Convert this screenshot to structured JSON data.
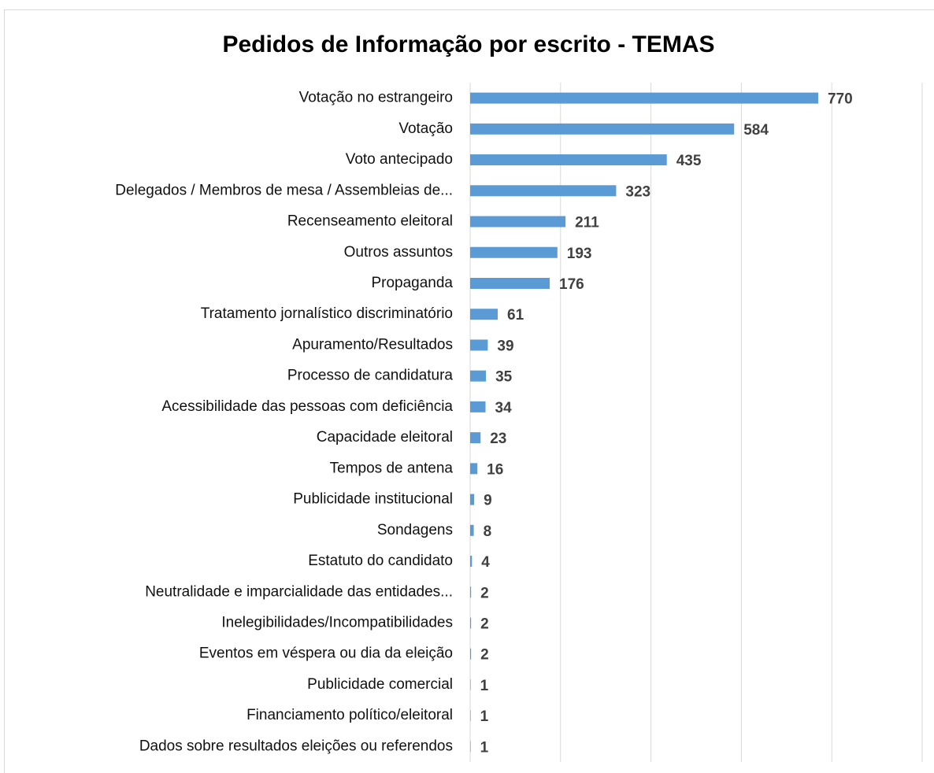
{
  "chart_data": {
    "type": "bar",
    "orientation": "horizontal",
    "title": "Pedidos de Informação por escrito - TEMAS",
    "categories": [
      "Votação no estrangeiro",
      "Votação",
      "Voto antecipado",
      "Delegados / Membros de mesa / Assembleias de...",
      "Recenseamento eleitoral",
      "Outros assuntos",
      "Propaganda",
      "Tratamento jornalístico discriminatório",
      "Apuramento/Resultados",
      "Processo de candidatura",
      "Acessibilidade das pessoas com deficiência",
      "Capacidade eleitoral",
      "Tempos de antena",
      "Publicidade institucional",
      "Sondagens",
      "Estatuto do candidato",
      "Neutralidade e imparcialidade das entidades...",
      "Inelegibilidades/Incompatibilidades",
      "Eventos em véspera ou dia da eleição",
      "Publicidade comercial",
      "Financiamento político/eleitoral",
      "Dados sobre resultados eleições ou referendos"
    ],
    "values": [
      770,
      584,
      435,
      323,
      211,
      193,
      176,
      61,
      39,
      35,
      34,
      23,
      16,
      9,
      8,
      4,
      2,
      2,
      2,
      1,
      1,
      1
    ],
    "color": "#5b9bd5",
    "xlim": [
      0,
      1000
    ],
    "xticks": [
      0,
      200,
      400,
      600,
      800,
      1000
    ],
    "grid": true
  }
}
